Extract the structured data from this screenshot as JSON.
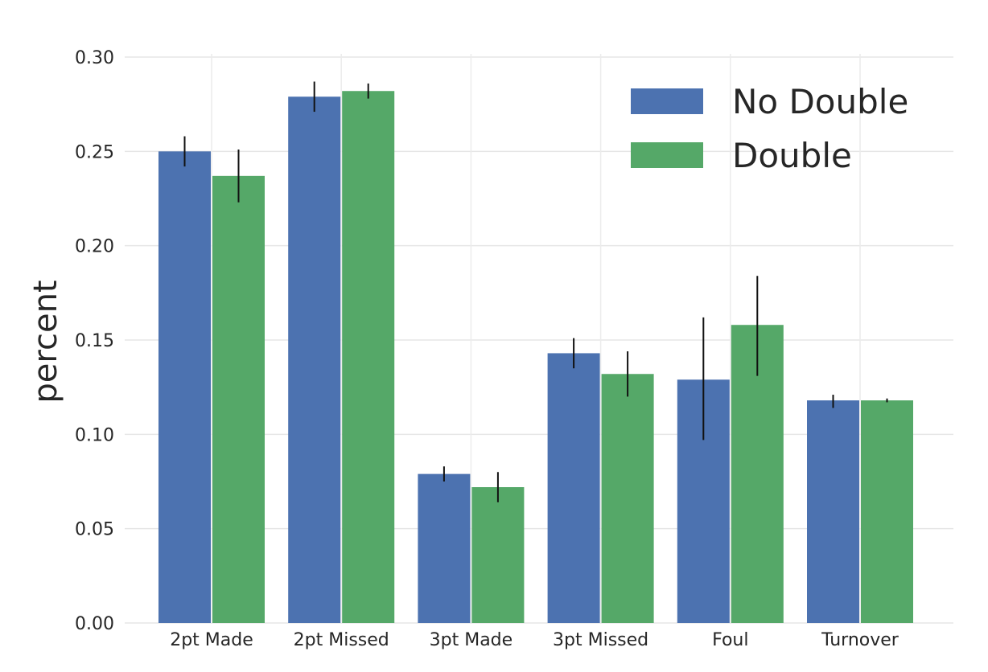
{
  "chart_data": {
    "type": "bar",
    "title": "",
    "xlabel": "",
    "ylabel": "percent",
    "ylim": [
      0,
      0.3
    ],
    "yticks": [
      "0.00",
      "0.05",
      "0.10",
      "0.15",
      "0.20",
      "0.25",
      "0.30"
    ],
    "grid": true,
    "legend_position": "top-right",
    "categories": [
      "2pt Made",
      "2pt Missed",
      "3pt Made",
      "3pt Missed",
      "Foul",
      "Turnover"
    ],
    "series": [
      {
        "name": "No Double",
        "color": "#4c72b0",
        "values": [
          0.25,
          0.279,
          0.079,
          0.143,
          0.129,
          0.118
        ],
        "error_low": [
          0.242,
          0.271,
          0.075,
          0.135,
          0.097,
          0.114
        ],
        "error_high": [
          0.258,
          0.287,
          0.083,
          0.151,
          0.162,
          0.121
        ]
      },
      {
        "name": "Double",
        "color": "#55a868",
        "values": [
          0.237,
          0.282,
          0.072,
          0.132,
          0.158,
          0.118
        ],
        "error_low": [
          0.223,
          0.278,
          0.064,
          0.12,
          0.131,
          0.117
        ],
        "error_high": [
          0.251,
          0.286,
          0.08,
          0.144,
          0.184,
          0.119
        ]
      }
    ]
  }
}
